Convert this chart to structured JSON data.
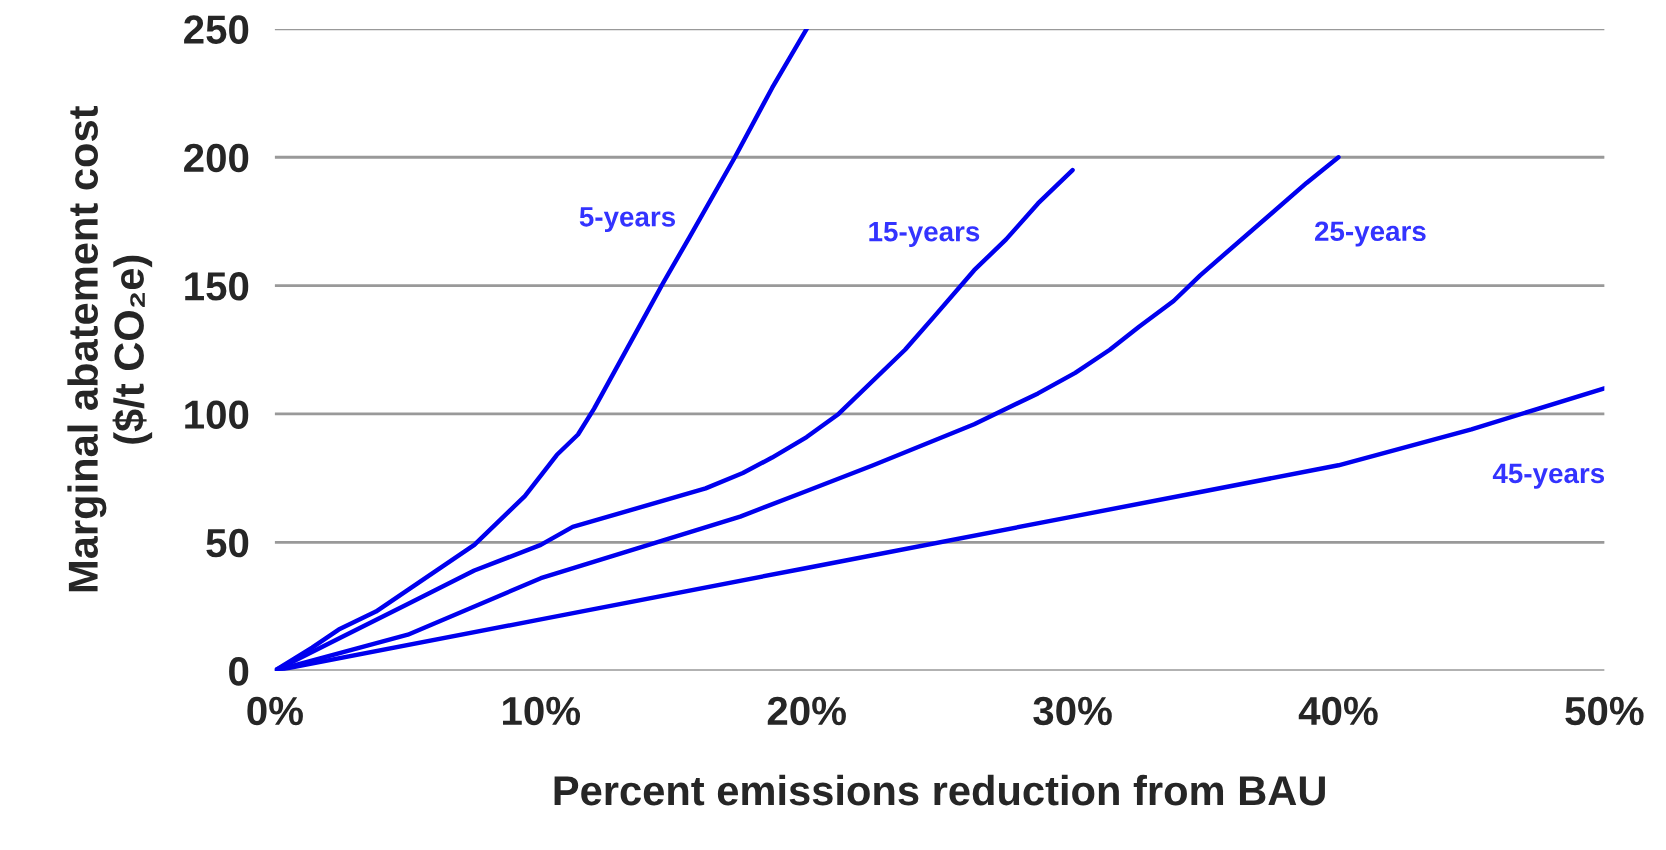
{
  "chart_data": {
    "type": "line",
    "xlabel": "Percent emissions reduction from BAU",
    "ylabel": "Marginal abatement cost\n($/t CO₂e)",
    "xlim": [
      0,
      50
    ],
    "xticks": [
      {
        "value": 0,
        "label": "0%"
      },
      {
        "value": 10,
        "label": "10%"
      },
      {
        "value": 20,
        "label": "20%"
      },
      {
        "value": 30,
        "label": "30%"
      },
      {
        "value": 40,
        "label": "40%"
      },
      {
        "value": 50,
        "label": "50%"
      }
    ],
    "ylim": [
      0,
      250
    ],
    "yticks": [
      0,
      50,
      100,
      150,
      200,
      250
    ],
    "grid": "y",
    "marker": "none",
    "line_style": "solid",
    "series": [
      {
        "name": "5-years",
        "color": "#0000ee",
        "x": [
          0,
          1.4,
          2.4,
          3.8,
          7.5,
          8.6,
          9.4,
          10.6,
          11.4,
          12,
          13.7,
          14.6,
          15.6,
          17.3,
          18.7,
          20
        ],
        "values": [
          0,
          9,
          16,
          23,
          49,
          60,
          68,
          84,
          92,
          102,
          134,
          151,
          169,
          200,
          227,
          250
        ]
      },
      {
        "name": "15-years",
        "color": "#0000ee",
        "x": [
          0,
          2.5,
          5,
          7.5,
          10,
          11.2,
          16.2,
          17.6,
          18.7,
          20,
          21.2,
          23.7,
          24.8,
          26.3,
          27.5,
          28.7,
          30
        ],
        "values": [
          0,
          13,
          26,
          39,
          49,
          56,
          71,
          77,
          83,
          91,
          100,
          125,
          138,
          156,
          168,
          182,
          195
        ]
      },
      {
        "name": "25-years",
        "color": "#0000ee",
        "x": [
          0,
          5,
          10,
          17.5,
          20,
          22.5,
          26.3,
          28.7,
          30.1,
          31.4,
          32.5,
          33.8,
          34.8,
          38.8,
          40
        ],
        "values": [
          0,
          14,
          36,
          60,
          70,
          80,
          96,
          108,
          116,
          125,
          134,
          144,
          154,
          190,
          200
        ]
      },
      {
        "name": "45-years",
        "color": "#0000ee",
        "x": [
          0,
          10,
          20,
          30,
          35,
          40,
          45,
          50
        ],
        "values": [
          0,
          20,
          40,
          60,
          70,
          80,
          94,
          110
        ]
      }
    ]
  }
}
